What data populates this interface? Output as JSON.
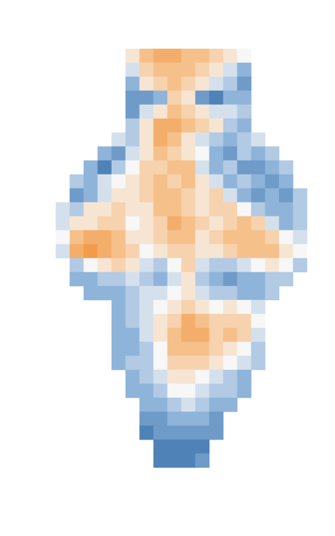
{
  "chart_data": {
    "type": "heatmap",
    "grid": false,
    "tick_labels": false,
    "color_range": [
      -0.6,
      0.6
    ],
    "cells": [
      [
        null,
        null,
        null,
        null,
        null,
        0.1,
        0.3,
        0.4,
        0.4,
        0.3,
        0.3,
        0.2,
        0.1,
        0,
        null,
        null,
        null,
        null
      ],
      [
        null,
        null,
        null,
        null,
        null,
        -0.1,
        0.2,
        0.3,
        0.3,
        0.3,
        0.2,
        0.1,
        -0.1,
        -0.3,
        null,
        null,
        null,
        null
      ],
      [
        null,
        null,
        null,
        null,
        null,
        -0.3,
        0.1,
        0.2,
        0.3,
        0.2,
        0.1,
        -0.1,
        -0.2,
        -0.4,
        null,
        null,
        null,
        null
      ],
      [
        null,
        null,
        null,
        null,
        null,
        -0.4,
        -0.4,
        -0.3,
        0.2,
        0.1,
        -0.4,
        -0.5,
        -0.3,
        -0.3,
        null,
        null,
        null,
        null
      ],
      [
        null,
        null,
        null,
        null,
        null,
        -0.4,
        -0.1,
        0.1,
        0.3,
        0.2,
        0.1,
        -0.1,
        -0.1,
        -0.2,
        null,
        null,
        null,
        null
      ],
      [
        null,
        null,
        null,
        null,
        null,
        -0.2,
        0.1,
        0.4,
        0.4,
        0.3,
        0.2,
        0.1,
        -0.2,
        -0.3,
        null,
        null,
        null,
        null
      ],
      [
        null,
        null,
        null,
        null,
        -0.1,
        -0.2,
        0.1,
        0.4,
        0.3,
        0.1,
        -0.1,
        -0.2,
        -0.3,
        -0.2,
        -0.1,
        null,
        null,
        null
      ],
      [
        null,
        null,
        null,
        -0.3,
        -0.4,
        -0.1,
        0.1,
        0.3,
        0.2,
        0.1,
        0,
        -0.3,
        -0.4,
        -0.2,
        -0.3,
        -0.2,
        null,
        null
      ],
      [
        null,
        null,
        -0.3,
        -0.5,
        -0.2,
        0,
        0.2,
        0.2,
        0.3,
        0.3,
        -0.1,
        -0.3,
        -0.2,
        -0.4,
        -0.4,
        -0.3,
        -0.2,
        null
      ],
      [
        null,
        -0.2,
        -0.3,
        -0.1,
        0,
        0.1,
        0.2,
        0.3,
        0.2,
        0.3,
        0.1,
        -0.1,
        -0.3,
        -0.2,
        -0.3,
        -0.4,
        -0.3,
        null
      ],
      [
        null,
        -0.4,
        -0.3,
        -0.1,
        0.1,
        0.1,
        0.2,
        0.3,
        0.3,
        0.2,
        0.1,
        0.2,
        -0.1,
        -0.3,
        -0.4,
        -0.3,
        -0.4,
        -0.2
      ],
      [
        -0.1,
        -0.2,
        0.1,
        0.1,
        0.2,
        0.1,
        0.1,
        0.3,
        0.3,
        0.2,
        0.1,
        0.2,
        0.2,
        0,
        -0.2,
        -0.3,
        -0.3,
        -0.2
      ],
      [
        -0.1,
        0.1,
        0.1,
        0.2,
        0.2,
        0,
        0.1,
        0.2,
        0.4,
        0.3,
        0.2,
        0.1,
        0.2,
        0.3,
        0.2,
        -0.1,
        -0.3,
        -0.2
      ],
      [
        0,
        0.3,
        0.4,
        0.4,
        0.3,
        0.1,
        0.1,
        0.2,
        0.3,
        0.3,
        0.1,
        0.2,
        0.3,
        0.3,
        0.3,
        0.2,
        0,
        -0.1
      ],
      [
        -0.1,
        0.4,
        0.5,
        0.4,
        0.3,
        0.2,
        0,
        0.1,
        0.2,
        0.2,
        0.1,
        0.1,
        0.2,
        0.3,
        0.3,
        0.3,
        0.1,
        0
      ],
      [
        null,
        -0.2,
        0,
        0.1,
        0.2,
        0.1,
        -0.1,
        -0.2,
        0,
        0.2,
        -0.1,
        -0.2,
        -0.2,
        -0.1,
        0,
        0.1,
        0,
        -0.2
      ],
      [
        null,
        -0.3,
        -0.3,
        -0.2,
        -0.2,
        -0.1,
        -0.2,
        -0.3,
        -0.1,
        0.1,
        -0.2,
        -0.3,
        -0.4,
        -0.3,
        -0.3,
        -0.2,
        -0.2,
        null
      ],
      [
        null,
        null,
        -0.3,
        -0.3,
        -0.3,
        -0.2,
        -0.1,
        -0.1,
        0,
        0.1,
        -0.1,
        -0.2,
        -0.2,
        -0.3,
        -0.3,
        -0.2,
        null,
        null
      ],
      [
        null,
        null,
        null,
        null,
        -0.3,
        -0.2,
        -0.1,
        0,
        0.1,
        0.2,
        0.1,
        0,
        0.1,
        0,
        -0.1,
        null,
        null,
        null
      ],
      [
        null,
        null,
        null,
        null,
        -0.3,
        -0.2,
        -0.1,
        0.1,
        0.2,
        0.4,
        0.3,
        0.2,
        0.2,
        0.2,
        0,
        null,
        null,
        null
      ],
      [
        null,
        null,
        null,
        null,
        -0.3,
        -0.3,
        -0.1,
        0.1,
        0.3,
        0.4,
        0.4,
        0.2,
        0.3,
        0.2,
        -0.1,
        null,
        null,
        null
      ],
      [
        null,
        null,
        null,
        null,
        -0.3,
        -0.3,
        -0.2,
        0,
        0.3,
        0.3,
        0.3,
        0.2,
        0.1,
        0,
        -0.2,
        null,
        null,
        null
      ],
      [
        null,
        null,
        null,
        null,
        -0.3,
        -0.2,
        -0.2,
        0,
        0.2,
        0.2,
        0.2,
        0.1,
        0,
        -0.1,
        -0.2,
        null,
        null,
        null
      ],
      [
        null,
        null,
        null,
        null,
        null,
        -0.3,
        -0.2,
        -0.1,
        0.1,
        0.1,
        0,
        -0.1,
        -0.2,
        -0.3,
        null,
        null,
        null,
        null
      ],
      [
        null,
        null,
        null,
        null,
        null,
        -0.3,
        -0.3,
        -0.2,
        0,
        0,
        -0.1,
        -0.2,
        -0.2,
        -0.3,
        null,
        null,
        null,
        null
      ],
      [
        null,
        null,
        null,
        null,
        null,
        null,
        -0.3,
        -0.3,
        -0.2,
        -0.1,
        -0.2,
        -0.3,
        -0.3,
        null,
        null,
        null,
        null,
        null
      ],
      [
        null,
        null,
        null,
        null,
        null,
        null,
        -0.4,
        -0.4,
        -0.3,
        -0.3,
        -0.3,
        -0.4,
        null,
        null,
        null,
        null,
        null,
        null
      ],
      [
        null,
        null,
        null,
        null,
        null,
        null,
        -0.5,
        -0.4,
        -0.4,
        -0.4,
        -0.4,
        -0.4,
        null,
        null,
        null,
        null,
        null,
        null
      ],
      [
        null,
        null,
        null,
        null,
        null,
        null,
        null,
        -0.5,
        -0.5,
        -0.5,
        -0.5,
        null,
        null,
        null,
        null,
        null,
        null,
        null
      ],
      [
        null,
        null,
        null,
        null,
        null,
        null,
        null,
        -0.5,
        -0.5,
        -0.5,
        -0.4,
        null,
        null,
        null,
        null,
        null,
        null,
        null
      ]
    ]
  }
}
